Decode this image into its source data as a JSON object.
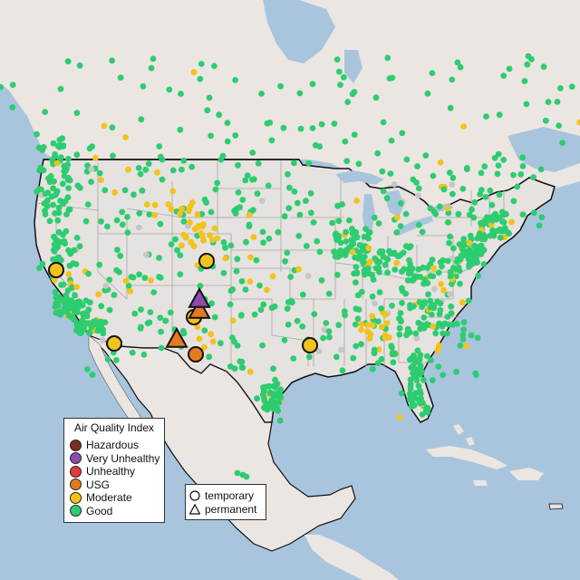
{
  "legend": {
    "title": "Air Quality Index",
    "categories": [
      {
        "label": "Hazardous",
        "color": "#7e2d25"
      },
      {
        "label": "Very Unhealthy",
        "color": "#8e4ab0"
      },
      {
        "label": "Unhealthy",
        "color": "#e53b3b"
      },
      {
        "label": "USG",
        "color": "#e47a1f"
      },
      {
        "label": "Moderate",
        "color": "#f2c31a"
      },
      {
        "label": "Good",
        "color": "#2ecc71"
      }
    ]
  },
  "shape_legend": {
    "items": [
      {
        "label": "temporary",
        "shape": "circle"
      },
      {
        "label": "permanent",
        "shape": "triangle"
      }
    ]
  },
  "colors": {
    "ocean": "#a9c5de",
    "land": "#ece6e2",
    "usa": "#e6e2df",
    "state_border": "#a8a8a8",
    "country_border": "#111111",
    "no_data": "#c6c6c6"
  }
}
